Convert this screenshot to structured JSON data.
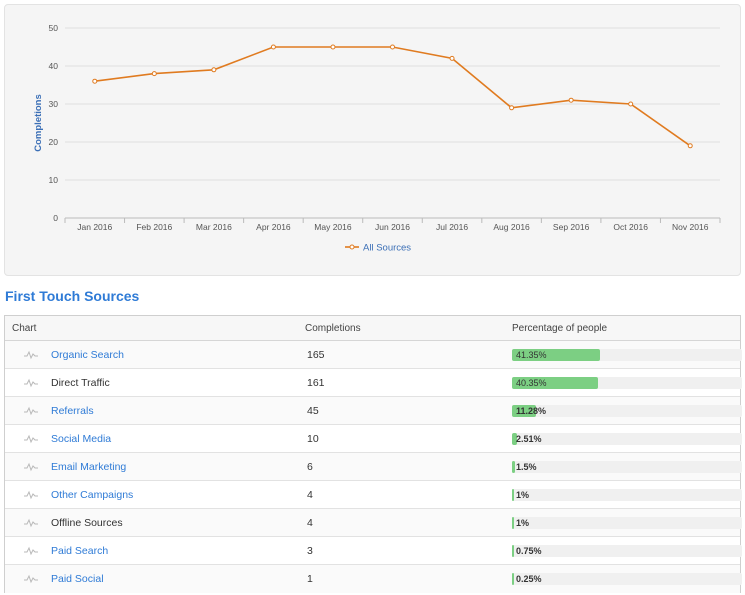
{
  "chart_data": {
    "type": "line",
    "x": [
      "Jan 2016",
      "Feb 2016",
      "Mar 2016",
      "Apr 2016",
      "May 2016",
      "Jun 2016",
      "Jul 2016",
      "Aug 2016",
      "Sep 2016",
      "Oct 2016",
      "Nov 2016"
    ],
    "series": [
      {
        "name": "All Sources",
        "values": [
          36,
          38,
          39,
          45,
          45,
          45,
          42,
          29,
          31,
          30,
          19
        ],
        "color": "#e07b20"
      }
    ],
    "ylabel": "Completions",
    "yticks": [
      0,
      10,
      20,
      30,
      40,
      50
    ],
    "ylim": [
      0,
      50
    ],
    "grid": true,
    "legend": "bottom-center"
  },
  "section_title": "First Touch Sources",
  "table": {
    "headers": {
      "chart": "Chart",
      "completions": "Completions",
      "percentage": "Percentage of people"
    },
    "rows": [
      {
        "source": "Organic Search",
        "link": true,
        "completions": "165",
        "pct_label": "41.35%",
        "pct": 41.35
      },
      {
        "source": "Direct Traffic",
        "link": false,
        "completions": "161",
        "pct_label": "40.35%",
        "pct": 40.35
      },
      {
        "source": "Referrals",
        "link": true,
        "completions": "45",
        "pct_label": "11.28%",
        "pct": 11.28
      },
      {
        "source": "Social Media",
        "link": true,
        "completions": "10",
        "pct_label": "2.51%",
        "pct": 2.51
      },
      {
        "source": "Email Marketing",
        "link": true,
        "completions": "6",
        "pct_label": "1.5%",
        "pct": 1.5
      },
      {
        "source": "Other Campaigns",
        "link": true,
        "completions": "4",
        "pct_label": "1%",
        "pct": 1
      },
      {
        "source": "Offline Sources",
        "link": false,
        "completions": "4",
        "pct_label": "1%",
        "pct": 1
      },
      {
        "source": "Paid Search",
        "link": true,
        "completions": "3",
        "pct_label": "0.75%",
        "pct": 0.75
      },
      {
        "source": "Paid Social",
        "link": true,
        "completions": "1",
        "pct_label": "0.25%",
        "pct": 0.25
      }
    ]
  },
  "colors": {
    "accent": "#2f7bd6",
    "line": "#e07b20",
    "bar": "#7ccf83"
  },
  "icons": {
    "row_chart": "sparkline-icon"
  }
}
